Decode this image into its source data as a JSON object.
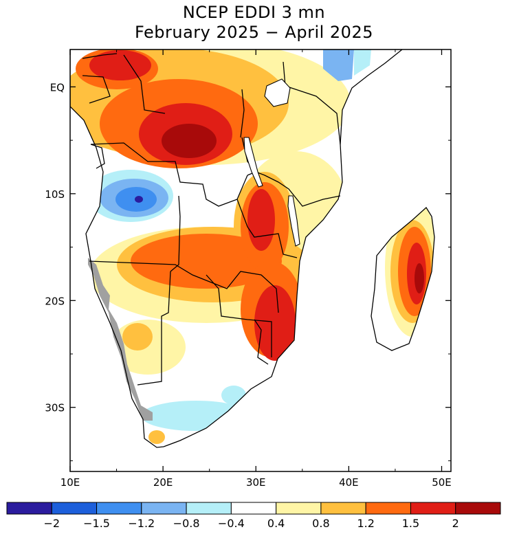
{
  "title": {
    "line1": "NCEP EDDI 3 mn",
    "line2": "February 2025 − April 2025"
  },
  "map": {
    "region": "Southern Africa",
    "lon_range": [
      10,
      51
    ],
    "lat_range": [
      -36,
      3.5
    ],
    "lat_ticks": [
      {
        "lat": 0,
        "label": "EQ"
      },
      {
        "lat": -10,
        "label": "10S"
      },
      {
        "lat": -20,
        "label": "20S"
      },
      {
        "lat": -30,
        "label": "30S"
      }
    ],
    "lon_ticks": [
      {
        "lon": 10,
        "label": "10E"
      },
      {
        "lon": 20,
        "label": "20E"
      },
      {
        "lon": 30,
        "label": "30E"
      },
      {
        "lon": 40,
        "label": "40E"
      },
      {
        "lon": 50,
        "label": "50E"
      }
    ],
    "no_data_color": "#a0a0a0"
  },
  "colorbar": {
    "colors": [
      "#2b1c9e",
      "#1d5fdb",
      "#3f8ff0",
      "#7ab4f2",
      "#b5eff8",
      "#ffffff",
      "#fff5a6",
      "#ffc03f",
      "#ff6a10",
      "#e01e16",
      "#a80a0a"
    ],
    "labels": [
      "−2",
      "−1.5",
      "−1.2",
      "−0.8",
      "−0.4",
      "0.4",
      "0.8",
      "1.2",
      "1.5",
      "2"
    ]
  }
}
